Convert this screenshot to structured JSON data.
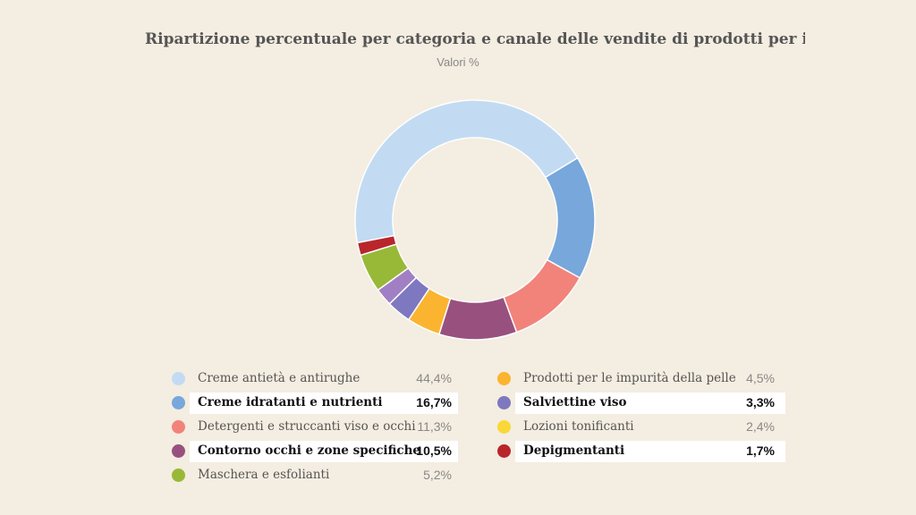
{
  "title": "Ripartizione percentuale per categoria e canale delle vendite di prodotti per il viso",
  "subtitle": "Valori %",
  "chart_data": {
    "type": "pie",
    "variant": "donut",
    "categories": [
      "Creme antietà e antirughe",
      "Creme idratanti e nutrienti",
      "Detergenti e struccanti viso e occhi",
      "Contorno occhi e zone specifiche",
      "Prodotti per le impurità della pelle",
      "Salviettine viso",
      "Lozioni tonificanti",
      "Maschera e esfolianti",
      "Depigmentanti"
    ],
    "values": [
      44.4,
      16.7,
      11.3,
      10.5,
      4.5,
      3.3,
      2.4,
      5.2,
      1.7
    ],
    "colors": [
      "#c2dbf3",
      "#77a7db",
      "#f2837a",
      "#98517f",
      "#fbb42f",
      "#7d78bf",
      "#a17fc4",
      "#97b937",
      "#b8262c"
    ],
    "legend": [
      {
        "label": "Creme antietà e antirughe",
        "value": "44,4%",
        "color": "#c2dbf3",
        "emphasis": false
      },
      {
        "label": "Creme idratanti e nutrienti",
        "value": "16,7%",
        "color": "#77a7db",
        "emphasis": true
      },
      {
        "label": "Detergenti e struccanti viso e occhi",
        "value": "11,3%",
        "color": "#f2837a",
        "emphasis": false
      },
      {
        "label": "Contorno occhi e zone specifiche",
        "value": "10,5%",
        "color": "#98517f",
        "emphasis": true
      },
      {
        "label": "Maschera e esfolianti",
        "value": "5,2%",
        "color": "#97b937",
        "emphasis": false
      },
      {
        "label": "Prodotti per le impurità della pelle",
        "value": "4,5%",
        "color": "#fbb42f",
        "emphasis": false
      },
      {
        "label": "Salviettine viso",
        "value": "3,3%",
        "color": "#7d78bf",
        "emphasis": true
      },
      {
        "label": "Lozioni tonificanti",
        "value": "2,4%",
        "color": "#f9d838",
        "emphasis": false
      },
      {
        "label": "Depigmentanti",
        "value": "1,7%",
        "color": "#b8262c",
        "emphasis": true
      }
    ]
  }
}
